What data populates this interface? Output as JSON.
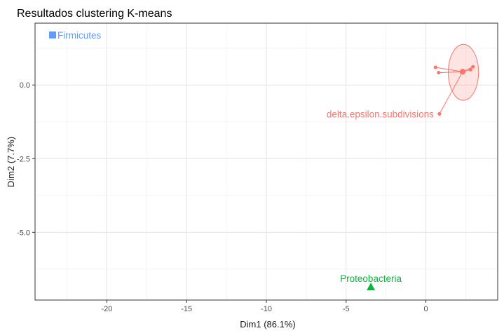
{
  "chart_data": {
    "type": "scatter",
    "title": "Resultados clustering K-means",
    "xlabel": "Dim1 (86.1%)",
    "ylabel": "Dim2 (7.7%)",
    "xlim": [
      -24.5,
      4.5
    ],
    "ylim": [
      -7.3,
      2.1
    ],
    "x_ticks": [
      -20,
      -15,
      -10,
      -5,
      0
    ],
    "x_tick_labels": [
      "-20",
      "-15",
      "-10",
      "-5",
      "0"
    ],
    "y_ticks": [
      0.0,
      -2.5,
      -5.0
    ],
    "y_tick_labels": [
      "0.0",
      "-2.5",
      "-5.0"
    ],
    "grid": true,
    "clusters": [
      {
        "name": "Firmicutes",
        "color": "#619CFF",
        "marker": "square",
        "center": {
          "x": -23.4,
          "y": 1.7
        },
        "points": [],
        "label": "Firmicutes",
        "label_anchor": "start"
      },
      {
        "name": "delta.epsilon.subdivisions",
        "color": "#F8766D",
        "marker": "circle",
        "center": {
          "x": 2.3,
          "y": 0.45
        },
        "points": [
          {
            "x": 0.6,
            "y": 0.6
          },
          {
            "x": 0.8,
            "y": 0.42
          },
          {
            "x": 2.8,
            "y": 0.52
          },
          {
            "x": 2.95,
            "y": 0.62
          },
          {
            "x": 0.85,
            "y": -0.98
          }
        ],
        "ellipse": {
          "cx": 2.35,
          "cy": 0.43,
          "rx": 0.95,
          "ry": 0.95
        },
        "label": "delta.epsilon.subdivisions",
        "label_point": {
          "x": 0.85,
          "y": -0.98
        },
        "label_anchor": "end"
      },
      {
        "name": "Proteobacteria",
        "color": "#00BA38",
        "marker": "triangle",
        "center": {
          "x": -3.45,
          "y": -6.85
        },
        "points": [],
        "label": "Proteobacteria",
        "label_anchor": "middle"
      }
    ]
  }
}
